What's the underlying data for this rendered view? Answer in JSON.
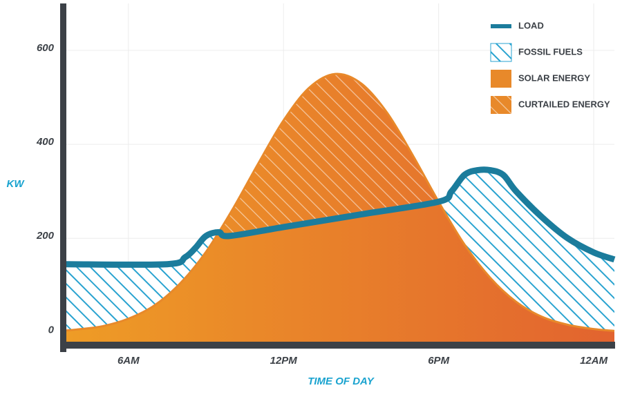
{
  "chart_data": {
    "type": "area",
    "xlabel": "TIME OF DAY",
    "ylabel": "KW",
    "xlim": [
      3.6,
      24.8
    ],
    "ylim": [
      -20,
      700
    ],
    "xticks": [
      {
        "value": 6,
        "label": "6AM"
      },
      {
        "value": 12,
        "label": "12PM"
      },
      {
        "value": 18,
        "label": "6PM"
      },
      {
        "value": 24,
        "label": "12AM"
      }
    ],
    "yticks": [
      0,
      200,
      400,
      600
    ],
    "grid": true,
    "legend": "upper right",
    "series": [
      {
        "name": "LOAD",
        "kind": "line",
        "color": "#1b7c9c",
        "x": [
          3.6,
          7.5,
          8.2,
          8.6,
          9,
          9.5,
          9.9,
          12,
          15,
          18,
          18.5,
          19,
          19.5,
          20,
          20.5,
          21,
          22,
          23,
          24,
          24.8
        ],
        "values": [
          145,
          145,
          160,
          180,
          205,
          213,
          205,
          224,
          251,
          278,
          300,
          335,
          345,
          345,
          335,
          300,
          245,
          200,
          170,
          155
        ]
      },
      {
        "name": "SOLAR ENERGY",
        "kind": "area",
        "color": "#e8892a",
        "x": [
          3.6,
          4,
          5,
          6,
          7,
          8,
          9,
          10,
          11,
          12,
          13,
          14,
          15,
          16,
          17,
          18,
          19,
          20,
          21,
          22,
          23,
          24,
          24.8
        ],
        "values": [
          4,
          6,
          13,
          29,
          57,
          104,
          171,
          259,
          357,
          451,
          521,
          550,
          530,
          468,
          377,
          278,
          187,
          116,
          65,
          33,
          16,
          7,
          3
        ]
      }
    ],
    "hatched_areas": [
      {
        "name": "FOSSIL FUELS",
        "color": "#29a3d0"
      },
      {
        "name": "CURTAILED ENERGY",
        "color": "#ffffff"
      }
    ]
  }
}
